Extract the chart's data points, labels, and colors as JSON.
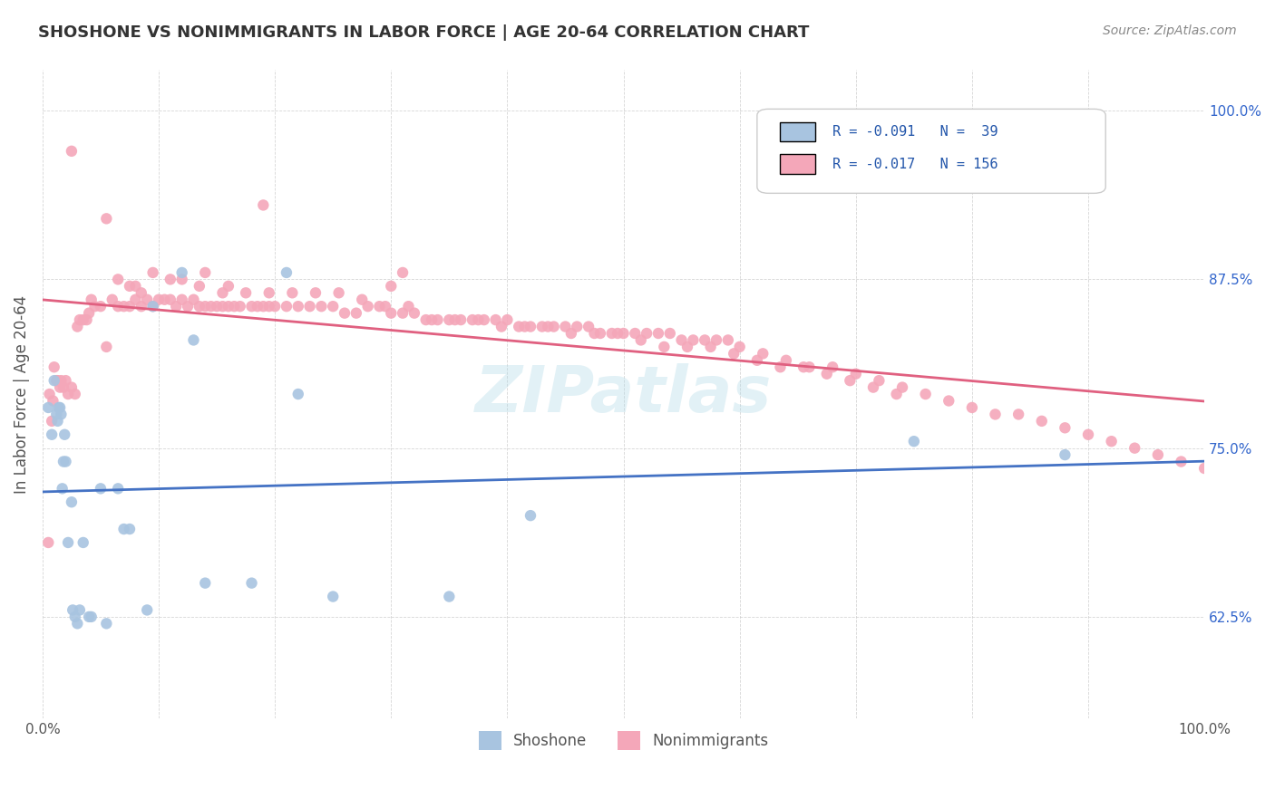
{
  "title": "SHOSHONE VS NONIMMIGRANTS IN LABOR FORCE | AGE 20-64 CORRELATION CHART",
  "source": "Source: ZipAtlas.com",
  "xlabel": "",
  "ylabel": "In Labor Force | Age 20-64",
  "xlim": [
    0.0,
    1.0
  ],
  "ylim": [
    0.55,
    1.03
  ],
  "yticks": [
    0.625,
    0.75,
    0.875,
    1.0
  ],
  "ytick_labels": [
    "62.5%",
    "75.0%",
    "87.5%",
    "100.0%"
  ],
  "xticks": [
    0.0,
    0.1,
    0.2,
    0.3,
    0.4,
    0.5,
    0.6,
    0.7,
    0.8,
    0.9,
    1.0
  ],
  "xtick_labels": [
    "0.0%",
    "",
    "",
    "",
    "",
    "",
    "",
    "",
    "",
    "",
    "100.0%"
  ],
  "legend_r1": "R = -0.091",
  "legend_n1": "N =  39",
  "legend_r2": "R = -0.017",
  "legend_n2": "N = 156",
  "shoshone_color": "#a8c4e0",
  "nonimmigrant_color": "#f4a7b9",
  "shoshone_line_color": "#4472c4",
  "nonimmigrant_line_color": "#e06080",
  "watermark": "ZIPatlas",
  "background_color": "#ffffff",
  "grid_color": "#cccccc",
  "title_color": "#333333",
  "axis_label_color": "#555555",
  "legend_text_color": "#2255aa",
  "shoshone_x": [
    0.005,
    0.008,
    0.01,
    0.012,
    0.013,
    0.014,
    0.015,
    0.016,
    0.017,
    0.018,
    0.019,
    0.02,
    0.022,
    0.025,
    0.026,
    0.028,
    0.03,
    0.032,
    0.035,
    0.04,
    0.042,
    0.05,
    0.055,
    0.065,
    0.07,
    0.075,
    0.09,
    0.095,
    0.12,
    0.13,
    0.14,
    0.18,
    0.21,
    0.22,
    0.25,
    0.35,
    0.42,
    0.75,
    0.88
  ],
  "shoshone_y": [
    0.78,
    0.76,
    0.8,
    0.775,
    0.77,
    0.78,
    0.78,
    0.775,
    0.72,
    0.74,
    0.76,
    0.74,
    0.68,
    0.71,
    0.63,
    0.625,
    0.62,
    0.63,
    0.68,
    0.625,
    0.625,
    0.72,
    0.62,
    0.72,
    0.69,
    0.69,
    0.63,
    0.855,
    0.88,
    0.83,
    0.65,
    0.65,
    0.88,
    0.79,
    0.64,
    0.64,
    0.7,
    0.755,
    0.745
  ],
  "nonimmigrant_x": [
    0.005,
    0.006,
    0.008,
    0.009,
    0.01,
    0.012,
    0.013,
    0.015,
    0.016,
    0.018,
    0.02,
    0.022,
    0.025,
    0.028,
    0.03,
    0.032,
    0.035,
    0.038,
    0.04,
    0.042,
    0.045,
    0.05,
    0.055,
    0.06,
    0.065,
    0.07,
    0.075,
    0.08,
    0.085,
    0.09,
    0.095,
    0.1,
    0.105,
    0.11,
    0.115,
    0.12,
    0.125,
    0.13,
    0.135,
    0.14,
    0.145,
    0.15,
    0.155,
    0.16,
    0.165,
    0.17,
    0.18,
    0.185,
    0.19,
    0.195,
    0.2,
    0.21,
    0.22,
    0.23,
    0.24,
    0.25,
    0.26,
    0.27,
    0.28,
    0.29,
    0.3,
    0.31,
    0.32,
    0.33,
    0.34,
    0.35,
    0.36,
    0.37,
    0.38,
    0.39,
    0.4,
    0.41,
    0.42,
    0.43,
    0.44,
    0.45,
    0.46,
    0.47,
    0.48,
    0.49,
    0.5,
    0.51,
    0.52,
    0.53,
    0.54,
    0.55,
    0.56,
    0.57,
    0.58,
    0.59,
    0.6,
    0.62,
    0.64,
    0.66,
    0.68,
    0.7,
    0.72,
    0.74,
    0.76,
    0.78,
    0.8,
    0.82,
    0.84,
    0.86,
    0.88,
    0.9,
    0.92,
    0.94,
    0.96,
    0.98,
    1.0,
    0.025,
    0.19,
    0.3,
    0.31,
    0.055,
    0.095,
    0.14,
    0.16,
    0.08,
    0.085,
    0.11,
    0.065,
    0.075,
    0.12,
    0.135,
    0.155,
    0.175,
    0.195,
    0.215,
    0.235,
    0.255,
    0.275,
    0.295,
    0.315,
    0.335,
    0.355,
    0.375,
    0.395,
    0.415,
    0.435,
    0.455,
    0.475,
    0.495,
    0.515,
    0.535,
    0.555,
    0.575,
    0.595,
    0.615,
    0.635,
    0.655,
    0.675,
    0.695,
    0.715,
    0.735
  ],
  "nonimmigrant_y": [
    0.68,
    0.79,
    0.77,
    0.785,
    0.81,
    0.8,
    0.8,
    0.795,
    0.8,
    0.795,
    0.8,
    0.79,
    0.795,
    0.79,
    0.84,
    0.845,
    0.845,
    0.845,
    0.85,
    0.86,
    0.855,
    0.855,
    0.825,
    0.86,
    0.855,
    0.855,
    0.855,
    0.86,
    0.855,
    0.86,
    0.855,
    0.86,
    0.86,
    0.86,
    0.855,
    0.86,
    0.855,
    0.86,
    0.855,
    0.855,
    0.855,
    0.855,
    0.855,
    0.855,
    0.855,
    0.855,
    0.855,
    0.855,
    0.855,
    0.855,
    0.855,
    0.855,
    0.855,
    0.855,
    0.855,
    0.855,
    0.85,
    0.85,
    0.855,
    0.855,
    0.85,
    0.85,
    0.85,
    0.845,
    0.845,
    0.845,
    0.845,
    0.845,
    0.845,
    0.845,
    0.845,
    0.84,
    0.84,
    0.84,
    0.84,
    0.84,
    0.84,
    0.84,
    0.835,
    0.835,
    0.835,
    0.835,
    0.835,
    0.835,
    0.835,
    0.83,
    0.83,
    0.83,
    0.83,
    0.83,
    0.825,
    0.82,
    0.815,
    0.81,
    0.81,
    0.805,
    0.8,
    0.795,
    0.79,
    0.785,
    0.78,
    0.775,
    0.775,
    0.77,
    0.765,
    0.76,
    0.755,
    0.75,
    0.745,
    0.74,
    0.735,
    0.97,
    0.93,
    0.87,
    0.88,
    0.92,
    0.88,
    0.88,
    0.87,
    0.87,
    0.865,
    0.875,
    0.875,
    0.87,
    0.875,
    0.87,
    0.865,
    0.865,
    0.865,
    0.865,
    0.865,
    0.865,
    0.86,
    0.855,
    0.855,
    0.845,
    0.845,
    0.845,
    0.84,
    0.84,
    0.84,
    0.835,
    0.835,
    0.835,
    0.83,
    0.825,
    0.825,
    0.825,
    0.82,
    0.815,
    0.81,
    0.81,
    0.805,
    0.8,
    0.795,
    0.79
  ]
}
